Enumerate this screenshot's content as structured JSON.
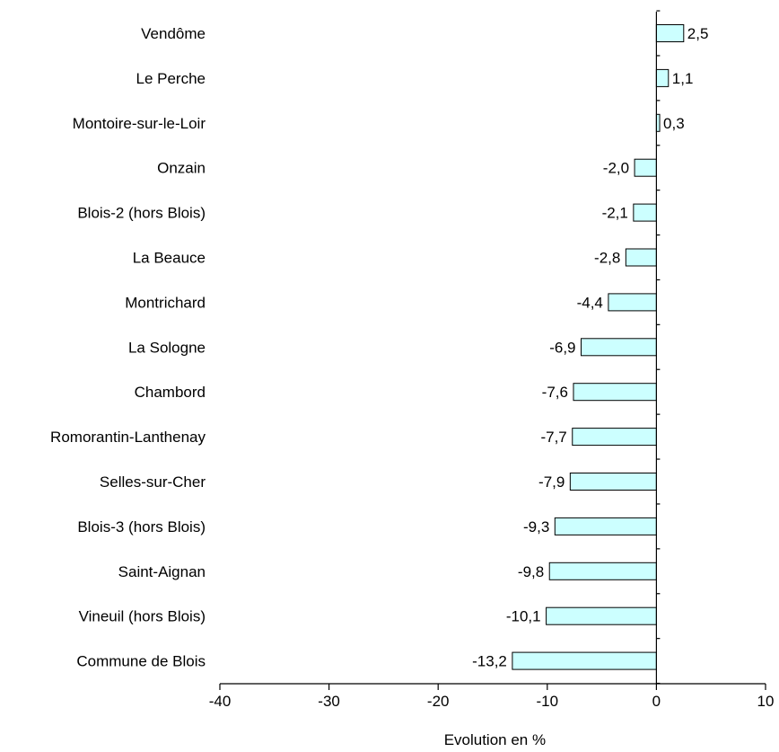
{
  "chart_data": {
    "type": "bar",
    "orientation": "horizontal",
    "categories": [
      "Vendôme",
      "Le Perche",
      "Montoire-sur-le-Loir",
      "Onzain",
      "Blois-2 (hors Blois)",
      "La Beauce",
      "Montrichard",
      "La Sologne",
      "Chambord",
      "Romorantin-Lanthenay",
      "Selles-sur-Cher",
      "Blois-3 (hors Blois)",
      "Saint-Aignan",
      "Vineuil (hors Blois)",
      "Commune de Blois"
    ],
    "values": [
      2.5,
      1.1,
      0.3,
      -2.0,
      -2.1,
      -2.8,
      -4.4,
      -6.9,
      -7.6,
      -7.7,
      -7.9,
      -9.3,
      -9.8,
      -10.1,
      -13.2
    ],
    "value_labels": [
      "2,5",
      "1,1",
      "0,3",
      "-2,0",
      "-2,1",
      "-2,8",
      "-4,4",
      "-6,9",
      "-7,6",
      "-7,7",
      "-7,9",
      "-9,3",
      "-9,8",
      "-10,1",
      "-13,2"
    ],
    "title": "",
    "xlabel": "Evolution en %",
    "ylabel": "",
    "xlim": [
      -40,
      10
    ],
    "xticks": [
      -40,
      -30,
      -20,
      -10,
      0,
      10
    ],
    "xtick_labels": [
      "-40",
      "-30",
      "-20",
      "-10",
      "0",
      "10"
    ],
    "grid": false,
    "legend": "none",
    "colors": {
      "bar_fill": "#ccffff",
      "bar_stroke": "#000000",
      "axis": "#000000"
    }
  }
}
